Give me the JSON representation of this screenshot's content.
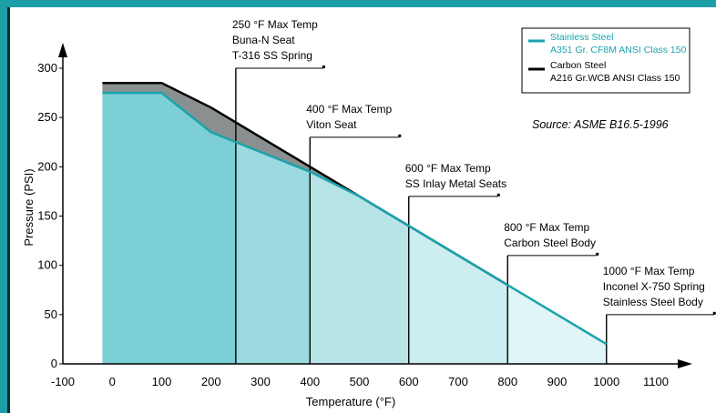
{
  "chart_data": {
    "type": "area",
    "xlabel": "Temperature (°F)",
    "ylabel": "Pressure (PSI)",
    "xlim": [
      -100,
      1100
    ],
    "ylim": [
      0,
      300
    ],
    "x_ticks": [
      "-100",
      "0",
      "100",
      "200",
      "300",
      "400",
      "500",
      "600",
      "700",
      "800",
      "900",
      "1000",
      "1100"
    ],
    "y_ticks": [
      "0",
      "50",
      "100",
      "150",
      "200",
      "250",
      "300"
    ],
    "grid": false,
    "legend_position": "top-right",
    "series": [
      {
        "name": "Stainless Steel A351 Gr. CF8M ANSI Class 150",
        "color": "#1aa3ad",
        "points": [
          [
            -20,
            275
          ],
          [
            100,
            275
          ],
          [
            200,
            235
          ],
          [
            300,
            215
          ],
          [
            400,
            195
          ],
          [
            500,
            170
          ],
          [
            600,
            140
          ],
          [
            700,
            110
          ],
          [
            800,
            80
          ],
          [
            900,
            50
          ],
          [
            1000,
            20
          ]
        ]
      },
      {
        "name": "Carbon Steel A216 Gr.WCB ANSI Class 150",
        "color": "#000000",
        "points": [
          [
            -20,
            285
          ],
          [
            100,
            285
          ],
          [
            200,
            260
          ],
          [
            300,
            230
          ],
          [
            400,
            200
          ],
          [
            500,
            170
          ],
          [
            600,
            140
          ],
          [
            700,
            110
          ],
          [
            800,
            80
          ]
        ]
      }
    ],
    "legend": [
      {
        "line1": "Stainless Steel",
        "line2": "A351 Gr. CF8M ANSI Class 150",
        "color": "#1aa3ad",
        "text_color": "#1aa3ad"
      },
      {
        "line1": "Carbon Steel",
        "line2": "A216 Gr.WCB ANSI Class 150",
        "color": "#000000",
        "text_color": "#000000"
      }
    ],
    "source_note": "Source:  ASME B16.5-1996",
    "bands": [
      {
        "x0": -20,
        "x1": 250,
        "fill": "#7ccfd4"
      },
      {
        "x0": 250,
        "x1": 400,
        "fill": "#9bdadf"
      },
      {
        "x0": 400,
        "x1": 600,
        "fill": "#b6e4e7"
      },
      {
        "x0": 600,
        "x1": 800,
        "fill": "#cdeef0"
      },
      {
        "x0": 800,
        "x1": 1000,
        "fill": "#e0f5f6"
      }
    ],
    "annotations": [
      {
        "x": 250,
        "y_top": 300,
        "lines": [
          "250 °F Max Temp",
          "Buna-N Seat",
          "T-316 SS Spring"
        ]
      },
      {
        "x": 400,
        "y_top": 230,
        "lines": [
          "400 °F Max Temp",
          "Viton Seat"
        ]
      },
      {
        "x": 600,
        "y_top": 170,
        "lines": [
          "600 °F Max Temp",
          "SS Inlay Metal Seats"
        ]
      },
      {
        "x": 800,
        "y_top": 110,
        "lines": [
          "800 °F Max Temp",
          "Carbon Steel Body"
        ]
      },
      {
        "x": 1000,
        "y_top": 50,
        "lines": [
          "1000 °F Max Temp",
          "Inconel X-750 Spring",
          "Stainless Steel Body"
        ]
      }
    ]
  }
}
